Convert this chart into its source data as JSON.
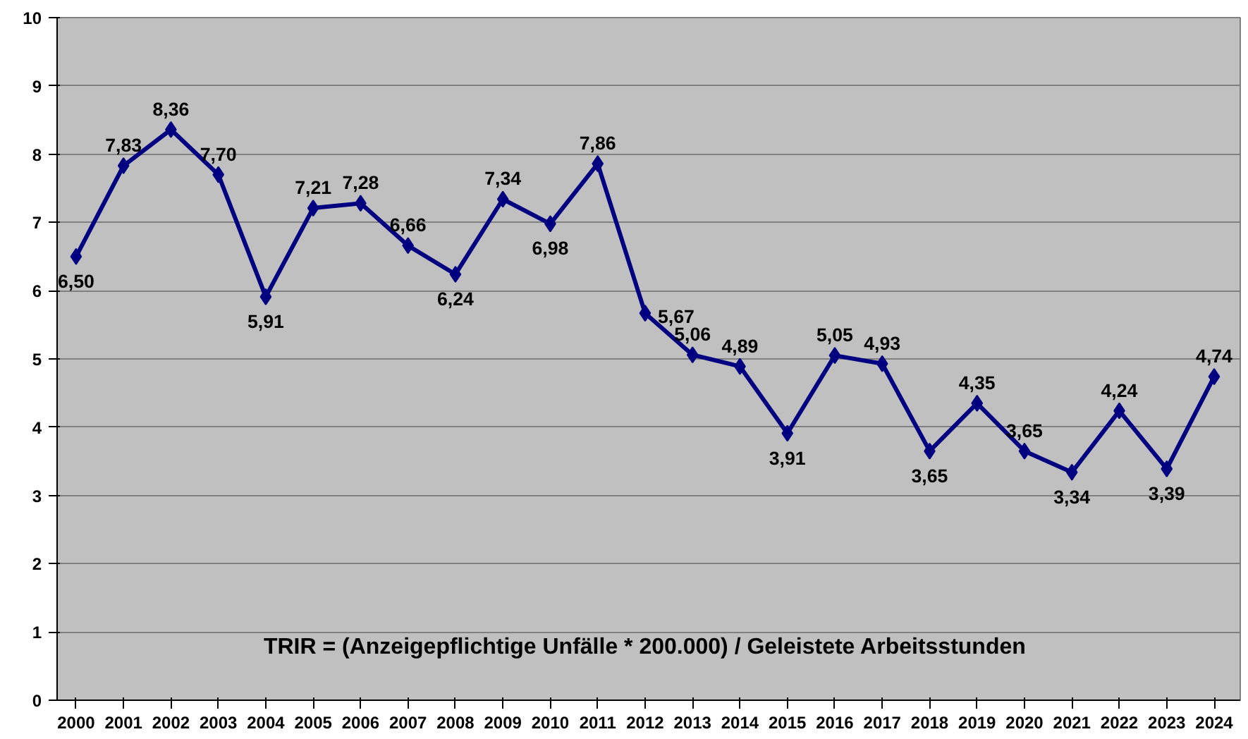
{
  "chart_data": {
    "type": "line",
    "categories": [
      "2000",
      "2001",
      "2002",
      "2003",
      "2004",
      "2005",
      "2006",
      "2007",
      "2008",
      "2009",
      "2010",
      "2011",
      "2012",
      "2013",
      "2014",
      "2015",
      "2016",
      "2017",
      "2018",
      "2019",
      "2020",
      "2021",
      "2022",
      "2023",
      "2024"
    ],
    "series": [
      {
        "color": "#000080",
        "values": [
          6.5,
          7.83,
          8.36,
          7.7,
          5.91,
          7.21,
          7.28,
          6.66,
          6.24,
          7.34,
          6.98,
          7.86,
          5.67,
          5.06,
          4.89,
          3.91,
          5.05,
          4.93,
          3.65,
          4.35,
          3.65,
          3.34,
          4.24,
          3.39,
          4.74
        ],
        "value_labels": [
          "6,50",
          "7,83",
          "8,36",
          "7,70",
          "5,91",
          "7,21",
          "7,28",
          "6,66",
          "6,24",
          "7,34",
          "6,98",
          "7,86",
          "5,67",
          "5,06",
          "4,89",
          "3,91",
          "5,05",
          "4,93",
          "3,65",
          "4,35",
          "3,65",
          "3,34",
          "4,24",
          "3,39",
          "4,74"
        ]
      }
    ],
    "ylim": [
      0,
      10
    ],
    "yticks": [
      0,
      1,
      2,
      3,
      4,
      5,
      6,
      7,
      8,
      9,
      10
    ],
    "grid": "y",
    "marker": "diamond",
    "line_style": "solid",
    "annotations": [
      "TRIR = (Anzeigepflichtige Unfälle * 200.000) / Geleistete Arbeitsstunden"
    ]
  }
}
